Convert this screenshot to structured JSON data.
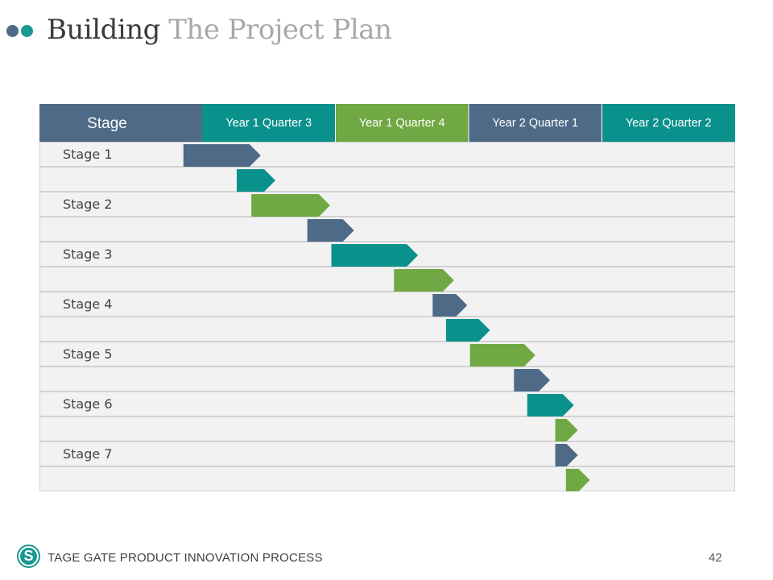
{
  "header": {
    "title_part1": "Building",
    "title_part2": "The Project Plan",
    "dot_colors": [
      "#4e6a87",
      "#1a9891"
    ]
  },
  "colors": {
    "slate": "#4e6a87",
    "teal": "#0b918c",
    "green": "#70a844",
    "row_bg": "#f2f2f2",
    "grid": "#d2d2d2",
    "title_dark": "#3b3b3b",
    "title_light": "#a8a8a8"
  },
  "chart_data": {
    "type": "gantt",
    "stage_header": "Stage",
    "columns": [
      {
        "label": "Year 1 Quarter 3",
        "color": "#0b918c"
      },
      {
        "label": "Year 1 Quarter 4",
        "color": "#70a844"
      },
      {
        "label": "Year 2 Quarter 1",
        "color": "#4e6a87"
      },
      {
        "label": "Year 2 Quarter 2",
        "color": "#0b918c"
      }
    ],
    "row_labels": [
      "Stage 1",
      "",
      "Stage 2",
      "",
      "Stage 3",
      "",
      "Stage 4",
      "",
      "Stage 5",
      "",
      "Stage 6",
      "",
      "Stage 7",
      ""
    ],
    "time_axis": {
      "start": -0.14,
      "end": 4.0,
      "unit": "quarter"
    },
    "tasks": [
      {
        "row": 0,
        "start": -0.14,
        "end": 0.44,
        "color": "slate"
      },
      {
        "row": 1,
        "start": 0.26,
        "end": 0.55,
        "color": "teal"
      },
      {
        "row": 2,
        "start": 0.37,
        "end": 0.96,
        "color": "green"
      },
      {
        "row": 3,
        "start": 0.79,
        "end": 1.14,
        "color": "slate"
      },
      {
        "row": 4,
        "start": 0.97,
        "end": 1.62,
        "color": "teal"
      },
      {
        "row": 5,
        "start": 1.44,
        "end": 1.89,
        "color": "green"
      },
      {
        "row": 6,
        "start": 1.73,
        "end": 1.99,
        "color": "slate"
      },
      {
        "row": 7,
        "start": 1.83,
        "end": 2.16,
        "color": "teal"
      },
      {
        "row": 8,
        "start": 2.01,
        "end": 2.5,
        "color": "green"
      },
      {
        "row": 9,
        "start": 2.34,
        "end": 2.61,
        "color": "slate"
      },
      {
        "row": 10,
        "start": 2.44,
        "end": 2.79,
        "color": "teal"
      },
      {
        "row": 11,
        "start": 2.65,
        "end": 2.82,
        "color": "green"
      },
      {
        "row": 12,
        "start": 2.65,
        "end": 2.82,
        "color": "slate"
      },
      {
        "row": 13,
        "start": 2.73,
        "end": 2.91,
        "color": "green"
      }
    ]
  },
  "footer": {
    "logo_letter": "S",
    "logo_color": "#1a9891",
    "text": "TAGE GATE PRODUCT INNOVATION PROCESS",
    "page_number": "42"
  }
}
